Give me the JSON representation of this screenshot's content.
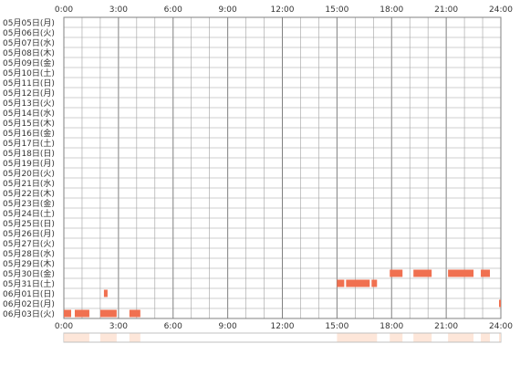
{
  "chart_data": {
    "type": "heatmap",
    "title": "",
    "xlabel": "",
    "ylabel": "",
    "x_ticks": [
      "0:00",
      "3:00",
      "6:00",
      "9:00",
      "12:00",
      "15:00",
      "18:00",
      "21:00",
      "24:00"
    ],
    "x_range_hours": [
      0,
      24
    ],
    "grid": true,
    "rows": [
      "05月05日(月)",
      "05月06日(火)",
      "05月07日(水)",
      "05月08日(木)",
      "05月09日(金)",
      "05月10日(土)",
      "05月11日(日)",
      "05月12日(月)",
      "05月13日(火)",
      "05月14日(水)",
      "05月15日(木)",
      "05月16日(金)",
      "05月17日(土)",
      "05月18日(日)",
      "05月19日(月)",
      "05月20日(火)",
      "05月21日(水)",
      "05月22日(木)",
      "05月23日(金)",
      "05月24日(土)",
      "05月25日(日)",
      "05月26日(月)",
      "05月27日(火)",
      "05月28日(水)",
      "05月29日(木)",
      "05月30日(金)",
      "05月31日(土)",
      "06月01日(日)",
      "06月02日(月)",
      "06月03日(火)"
    ],
    "activity": [
      {
        "row": 25,
        "start": 17.9,
        "end": 18.6
      },
      {
        "row": 25,
        "start": 19.2,
        "end": 20.2
      },
      {
        "row": 25,
        "start": 21.1,
        "end": 22.5
      },
      {
        "row": 25,
        "start": 22.9,
        "end": 23.4
      },
      {
        "row": 26,
        "start": 15.0,
        "end": 15.4
      },
      {
        "row": 26,
        "start": 15.5,
        "end": 16.8
      },
      {
        "row": 26,
        "start": 16.9,
        "end": 17.2
      },
      {
        "row": 27,
        "start": 2.2,
        "end": 2.4
      },
      {
        "row": 28,
        "start": 23.9,
        "end": 24.0
      },
      {
        "row": 29,
        "start": 0.0,
        "end": 0.4
      },
      {
        "row": 29,
        "start": 0.6,
        "end": 1.4
      },
      {
        "row": 29,
        "start": 2.0,
        "end": 2.9
      },
      {
        "row": 29,
        "start": 3.6,
        "end": 4.2
      }
    ],
    "summary_bands": [
      {
        "start": 0.0,
        "end": 1.4,
        "level": 0.5
      },
      {
        "start": 2.0,
        "end": 2.9,
        "level": 0.5
      },
      {
        "start": 3.6,
        "end": 4.2,
        "level": 0.5
      },
      {
        "start": 15.0,
        "end": 17.2,
        "level": 0.5
      },
      {
        "start": 17.9,
        "end": 18.6,
        "level": 0.5
      },
      {
        "start": 19.2,
        "end": 20.2,
        "level": 0.5
      },
      {
        "start": 21.1,
        "end": 22.5,
        "level": 0.5
      },
      {
        "start": 22.9,
        "end": 23.4,
        "level": 0.5
      },
      {
        "start": 23.9,
        "end": 24.0,
        "level": 0.5
      }
    ],
    "colors": {
      "activity": "#f07050",
      "summary": "#fde0d0",
      "grid": "#a0a0a0",
      "border": "#808080"
    }
  }
}
